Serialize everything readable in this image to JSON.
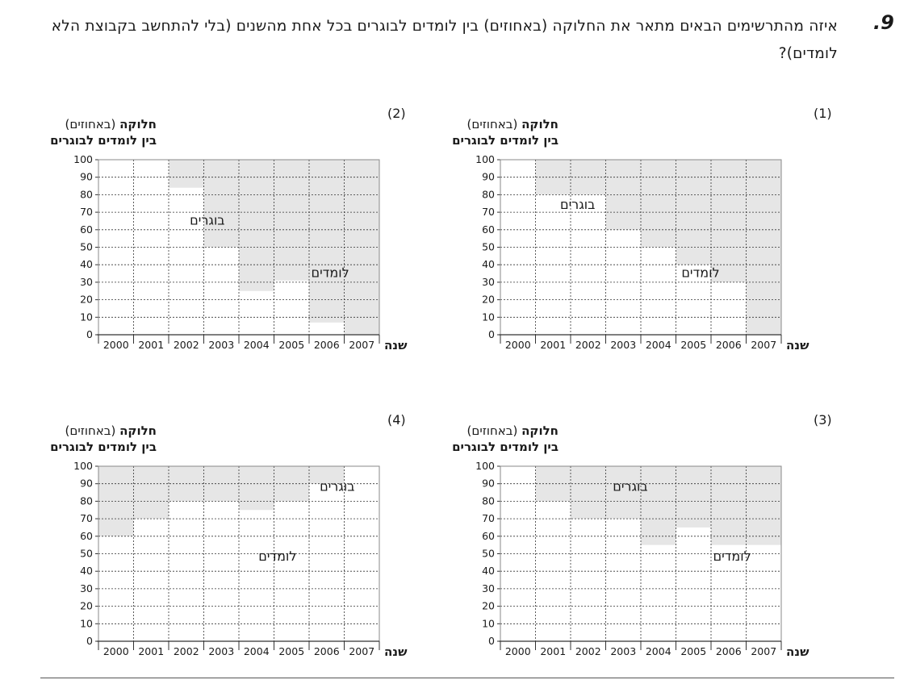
{
  "question": {
    "number": ".9",
    "text": "איזה מהתרשימים הבאים מתאר את החלוקה (באחוזים) בין לומדים לבוגרים בכל אחת מהשנים (בלי להתחשב בקבוצת הלא לומדים)?"
  },
  "colors": {
    "graduates": "#e6e6e6",
    "learners": "#ffffff",
    "grid": "#333333",
    "frame": "#888888"
  },
  "chart_data": [
    {
      "option": "(1)",
      "type": "area",
      "title_bold": "חלוקה",
      "title_regular": "(באחוזים)",
      "title_line2": "בין לומדים לבוגרים",
      "xlabel": "שנה",
      "x_direction": "right-to-left",
      "categories": [
        "2007",
        "2006",
        "2005",
        "2004",
        "2003",
        "2002",
        "2001",
        "2000"
      ],
      "y_ticks": [
        "0",
        "10",
        "20",
        "30",
        "40",
        "50",
        "60",
        "70",
        "80",
        "90",
        "100"
      ],
      "ylim": [
        0,
        100
      ],
      "grid": true,
      "series": [
        {
          "name": "לומדים",
          "values": [
            0,
            30,
            40,
            50,
            60,
            80,
            80,
            100
          ]
        },
        {
          "name": "בוגרים",
          "values": [
            100,
            70,
            60,
            50,
            40,
            20,
            20,
            0
          ]
        }
      ]
    },
    {
      "option": "(2)",
      "type": "area",
      "title_bold": "חלוקה",
      "title_regular": "(באחוזים)",
      "title_line2": "בין לומדים לבוגרים",
      "xlabel": "שנה",
      "x_direction": "right-to-left",
      "categories": [
        "2007",
        "2006",
        "2005",
        "2004",
        "2003",
        "2002",
        "2001",
        "2000"
      ],
      "y_ticks": [
        "0",
        "10",
        "20",
        "30",
        "40",
        "50",
        "60",
        "70",
        "80",
        "90",
        "100"
      ],
      "ylim": [
        0,
        100
      ],
      "grid": true,
      "series": [
        {
          "name": "לומדים",
          "values": [
            0,
            7,
            31,
            25,
            50,
            84,
            100,
            100
          ]
        },
        {
          "name": "בוגרים",
          "values": [
            100,
            93,
            69,
            75,
            50,
            16,
            0,
            0
          ]
        }
      ]
    },
    {
      "option": "(3)",
      "type": "area",
      "title_bold": "חלוקה",
      "title_regular": "(באחוזים)",
      "title_line2": "בין לומדים לבוגרים",
      "xlabel": "שנה",
      "x_direction": "right-to-left",
      "categories": [
        "2007",
        "2006",
        "2005",
        "2004",
        "2003",
        "2002",
        "2001",
        "2000"
      ],
      "y_ticks": [
        "0",
        "10",
        "20",
        "30",
        "40",
        "50",
        "60",
        "70",
        "80",
        "90",
        "100"
      ],
      "ylim": [
        0,
        100
      ],
      "grid": true,
      "series": [
        {
          "name": "לומדים",
          "values": [
            55,
            55,
            65,
            55,
            70,
            70,
            80,
            100
          ]
        },
        {
          "name": "בוגרים",
          "values": [
            45,
            45,
            35,
            45,
            30,
            30,
            20,
            0
          ]
        }
      ]
    },
    {
      "option": "(4)",
      "type": "area",
      "title_bold": "חלוקה",
      "title_regular": "(באחוזים)",
      "title_line2": "בין לומדים לבוגרים",
      "xlabel": "שנה",
      "x_direction": "right-to-left",
      "categories": [
        "2007",
        "2006",
        "2005",
        "2004",
        "2003",
        "2002",
        "2001",
        "2000"
      ],
      "y_ticks": [
        "0",
        "10",
        "20",
        "30",
        "40",
        "50",
        "60",
        "70",
        "80",
        "90",
        "100"
      ],
      "ylim": [
        0,
        100
      ],
      "grid": true,
      "series": [
        {
          "name": "לומדים",
          "values": [
            100,
            90,
            80,
            75,
            80,
            80,
            70,
            60
          ]
        },
        {
          "name": "בוגרים",
          "values": [
            0,
            10,
            20,
            25,
            20,
            20,
            30,
            40
          ]
        }
      ]
    }
  ]
}
